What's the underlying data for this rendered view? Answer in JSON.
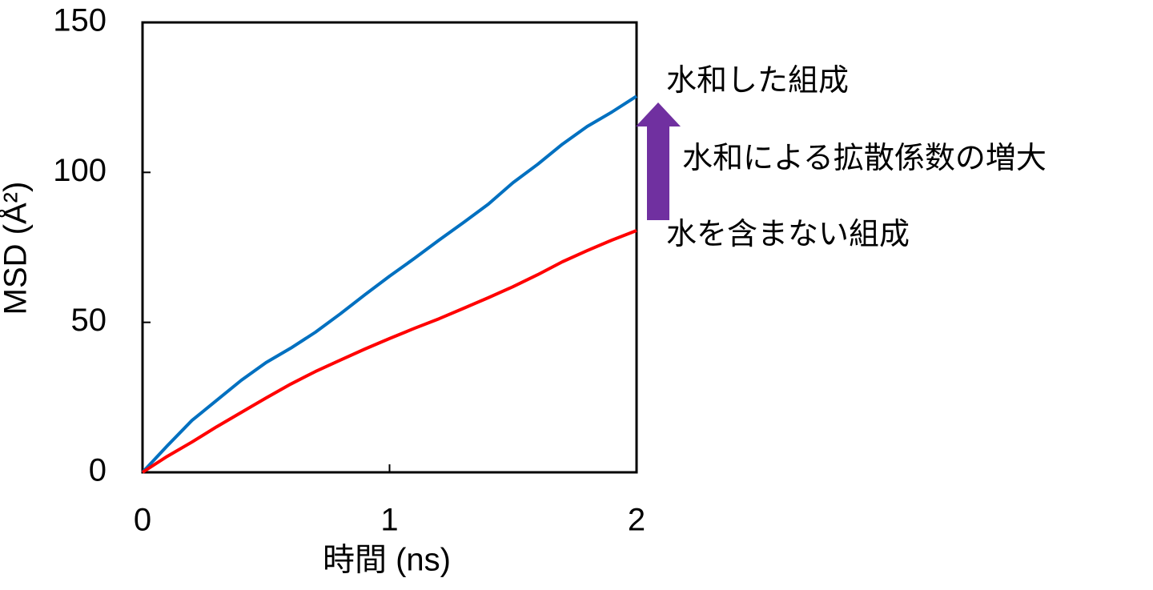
{
  "chart_data": {
    "type": "line",
    "x_label": "時間 (ns)",
    "y_label": "MSD (Å²)",
    "x": [
      0,
      0.1,
      0.2,
      0.3,
      0.4,
      0.5,
      0.6,
      0.7,
      0.8,
      0.9,
      1.0,
      1.1,
      1.2,
      1.3,
      1.4,
      1.5,
      1.6,
      1.7,
      1.8,
      1.9,
      2.0
    ],
    "series": [
      {
        "name": "水和した組成",
        "color": "#0070c0",
        "values": [
          0,
          8.8,
          17.3,
          24,
          30.7,
          36.6,
          41.4,
          46.7,
          52.8,
          59.2,
          65.4,
          71.3,
          77.4,
          83.3,
          89.4,
          96.6,
          102.7,
          109.4,
          115.3,
          120.1,
          125.4
        ]
      },
      {
        "name": "水を含まない組成",
        "color": "#ff0000",
        "values": [
          0,
          5.3,
          10.1,
          15.2,
          20,
          24.8,
          29.4,
          33.6,
          37.4,
          41.1,
          44.6,
          48,
          51.2,
          54.7,
          58.2,
          61.9,
          65.9,
          70.2,
          73.9,
          77.4,
          80.6
        ]
      }
    ],
    "annotation": {
      "text": "水和による拡散係数の増大",
      "color": "#7030a0"
    },
    "xlim": [
      0,
      2
    ],
    "xticks": [
      0,
      1,
      2
    ],
    "ylim": [
      0,
      150
    ],
    "yticks": [
      0,
      50,
      100,
      150
    ]
  }
}
